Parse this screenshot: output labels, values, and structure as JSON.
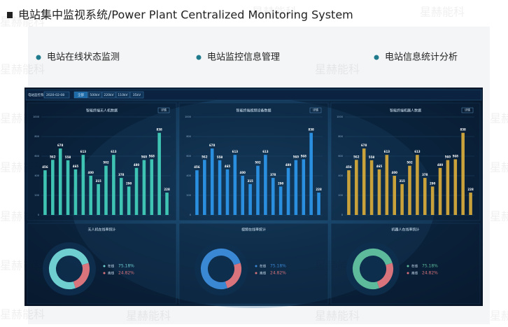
{
  "header": {
    "title": "电站集中监视系统/Power Plant Centralized Monitoring System"
  },
  "features": [
    "电站在线状态监测",
    "电站监控信息管理",
    "电站信息统计分析"
  ],
  "watermark": "星赫能科",
  "dashboard": {
    "system_name": "电站监控系统",
    "date": "2020-02-08",
    "tabs": [
      "全部",
      "500kV",
      "220kV",
      "110kV",
      "35kV"
    ],
    "yticks": [
      0,
      200,
      400,
      600,
      800,
      1000
    ],
    "ylim": [
      0,
      1000
    ],
    "bar_panels": [
      {
        "title": "智能终端无人机数据",
        "button": "详情",
        "color": "#3fc3b2",
        "values": [
          456,
          562,
          678,
          558,
          465,
          613,
          400,
          315,
          502,
          613,
          378,
          290,
          480,
          560,
          568,
          838,
          228
        ]
      },
      {
        "title": "智能终端视频设备数据",
        "button": "详情",
        "color": "#2b8fe0",
        "values": [
          456,
          562,
          678,
          558,
          465,
          613,
          400,
          315,
          502,
          613,
          378,
          290,
          480,
          560,
          568,
          838,
          228
        ]
      },
      {
        "title": "智能终端机器人数据",
        "button": "详情",
        "color": "#c9a23c",
        "values": [
          456,
          562,
          678,
          558,
          465,
          613,
          400,
          315,
          502,
          613,
          378,
          290,
          480,
          560,
          568,
          838,
          228
        ]
      }
    ],
    "donut_panels": [
      {
        "title": "无人机在线率统计",
        "colors": [
          "#6fcfd0",
          "#d9737c"
        ],
        "names": [
          "在线",
          "离线"
        ],
        "values": [
          75.18,
          24.82
        ],
        "value_labels": [
          "75.18%",
          "24.82%"
        ]
      },
      {
        "title": "视频在线率统计",
        "colors": [
          "#3a88d4",
          "#d9737c"
        ],
        "names": [
          "在线",
          "离线"
        ],
        "values": [
          75.18,
          24.82
        ],
        "value_labels": [
          "75.18%",
          "24.82%"
        ]
      },
      {
        "title": "机器人在线率统计",
        "colors": [
          "#5dbb9c",
          "#d9737c"
        ],
        "names": [
          "在线",
          "离线"
        ],
        "values": [
          75.18,
          24.82
        ],
        "value_labels": [
          "75.18%",
          "24.82%"
        ]
      }
    ]
  }
}
